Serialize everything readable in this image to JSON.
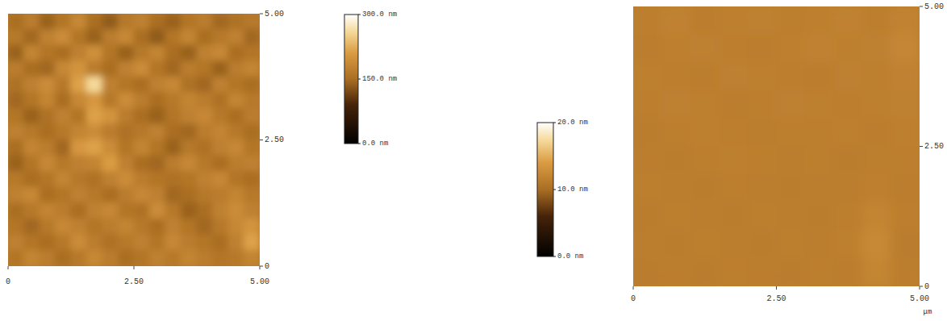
{
  "chart_data": [
    {
      "type": "heatmap",
      "xlim": [
        0,
        5
      ],
      "ylim": [
        0,
        5
      ],
      "xticks": [
        0,
        {
          "value": 2.5,
          "label": "2.50"
        },
        {
          "value": 5,
          "label": "5.00"
        }
      ],
      "yticks": [
        0,
        {
          "value": 2.5,
          "label": "2.50"
        },
        {
          "value": 5,
          "label": "5.00"
        }
      ],
      "colorbar_range": [
        0,
        300
      ],
      "colorbar_ticks": [
        {
          "value": 0,
          "label": "0.0 nm"
        },
        {
          "value": 150,
          "label": "150.0 nm"
        },
        {
          "value": 300,
          "label": "300.0 nm"
        }
      ],
      "cells": [
        [
          150,
          170,
          140,
          160,
          185,
          150,
          135,
          165,
          175,
          150,
          140,
          160,
          170,
          145,
          155,
          165
        ],
        [
          165,
          145,
          175,
          190,
          160,
          140,
          170,
          185,
          150,
          135,
          160,
          180,
          150,
          165,
          175,
          145
        ],
        [
          140,
          180,
          160,
          150,
          175,
          195,
          160,
          140,
          165,
          180,
          150,
          140,
          175,
          185,
          150,
          160
        ],
        [
          170,
          150,
          145,
          185,
          200,
          170,
          150,
          175,
          190,
          160,
          145,
          170,
          160,
          140,
          170,
          180
        ],
        [
          155,
          175,
          190,
          165,
          215,
          260,
          175,
          160,
          150,
          175,
          185,
          155,
          145,
          175,
          160,
          150
        ],
        [
          145,
          160,
          180,
          150,
          185,
          205,
          165,
          190,
          170,
          150,
          165,
          180,
          170,
          155,
          180,
          165
        ],
        [
          160,
          140,
          155,
          175,
          160,
          215,
          200,
          170,
          150,
          140,
          160,
          175,
          185,
          165,
          150,
          170
        ],
        [
          175,
          165,
          150,
          165,
          180,
          190,
          170,
          155,
          165,
          175,
          150,
          145,
          170,
          180,
          165,
          150
        ],
        [
          150,
          180,
          170,
          145,
          205,
          215,
          190,
          160,
          180,
          160,
          140,
          165,
          155,
          175,
          185,
          160
        ],
        [
          140,
          160,
          185,
          165,
          175,
          180,
          210,
          175,
          150,
          145,
          170,
          185,
          165,
          150,
          170,
          175
        ],
        [
          165,
          150,
          160,
          180,
          165,
          155,
          175,
          190,
          170,
          160,
          155,
          160,
          175,
          185,
          160,
          150
        ],
        [
          175,
          185,
          150,
          160,
          175,
          165,
          150,
          170,
          185,
          175,
          145,
          150,
          165,
          170,
          180,
          165
        ],
        [
          150,
          165,
          180,
          170,
          150,
          175,
          185,
          160,
          155,
          190,
          165,
          140,
          150,
          175,
          190,
          175
        ],
        [
          160,
          145,
          165,
          185,
          175,
          160,
          170,
          180,
          165,
          150,
          175,
          160,
          145,
          165,
          185,
          200
        ],
        [
          175,
          160,
          150,
          165,
          190,
          170,
          155,
          165,
          175,
          160,
          185,
          170,
          160,
          150,
          175,
          215
        ],
        [
          160,
          180,
          170,
          150,
          165,
          185,
          170,
          150,
          160,
          175,
          165,
          180,
          170,
          160,
          165,
          180
        ]
      ]
    },
    {
      "type": "heatmap",
      "xlim": [
        0,
        5
      ],
      "ylim": [
        0,
        5
      ],
      "xticks": [
        0,
        {
          "value": 2.5,
          "label": "2.50"
        },
        {
          "value": 5,
          "label": "5.00"
        }
      ],
      "yticks": [
        0,
        {
          "value": 2.5,
          "label": "2.50"
        },
        {
          "value": 5,
          "label": "5.00"
        }
      ],
      "x_label": "μm",
      "colorbar_range": [
        0,
        20
      ],
      "colorbar_ticks": [
        {
          "value": 0,
          "label": "0.0 nm"
        },
        {
          "value": 10,
          "label": "10.0 nm"
        },
        {
          "value": 20,
          "label": "20.0 nm"
        }
      ],
      "cells": [
        [
          11.5,
          11.8,
          11.4,
          11.6,
          11.7,
          11.5,
          11.6,
          11.8,
          11.5,
          11.9
        ],
        [
          11.4,
          11.6,
          11.7,
          11.5,
          11.4,
          11.6,
          11.8,
          11.6,
          11.7,
          12.2
        ],
        [
          11.6,
          11.5,
          11.4,
          11.7,
          11.6,
          11.5,
          11.4,
          11.7,
          11.6,
          11.8
        ],
        [
          11.5,
          11.7,
          11.6,
          11.4,
          11.5,
          11.7,
          11.6,
          11.5,
          11.6,
          11.7
        ],
        [
          11.3,
          11.5,
          11.6,
          11.5,
          11.4,
          11.5,
          11.5,
          11.6,
          11.4,
          11.6
        ],
        [
          11.4,
          11.3,
          11.5,
          11.6,
          11.5,
          11.4,
          11.5,
          11.3,
          11.5,
          11.5
        ],
        [
          11.5,
          11.4,
          11.3,
          11.5,
          11.4,
          11.3,
          11.4,
          11.4,
          11.6,
          11.4
        ],
        [
          11.3,
          11.5,
          11.4,
          11.3,
          11.5,
          11.4,
          11.3,
          11.5,
          12.0,
          11.5
        ],
        [
          11.4,
          11.3,
          11.5,
          11.4,
          11.3,
          11.5,
          11.4,
          11.6,
          12.4,
          11.3
        ],
        [
          11.3,
          11.4,
          11.3,
          11.5,
          11.4,
          11.3,
          11.5,
          11.4,
          12.1,
          11.4
        ]
      ]
    }
  ]
}
